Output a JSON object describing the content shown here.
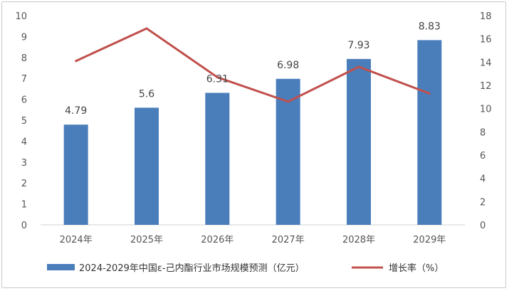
{
  "chart_data": {
    "type": "bar",
    "categories": [
      "2024年",
      "2025年",
      "2026年",
      "2027年",
      "2028年",
      "2029年"
    ],
    "series": [
      {
        "name": "2024-2029年中国ε-己内酯行业市场规模预测（亿元）",
        "type": "bar",
        "axis": "left",
        "values": [
          4.79,
          5.6,
          6.31,
          6.98,
          7.93,
          8.83
        ],
        "data_labels": [
          "4.79",
          "5.6",
          "6.31",
          "6.98",
          "7.93",
          "8.83"
        ]
      },
      {
        "name": "增长率（%）",
        "type": "line",
        "axis": "right",
        "values": [
          14.1,
          16.9,
          12.7,
          10.6,
          13.6,
          11.3
        ]
      }
    ],
    "y_left": {
      "min": 0,
      "max": 10,
      "ticks": [
        "0",
        "1",
        "2",
        "3",
        "4",
        "5",
        "6",
        "7",
        "8",
        "9",
        "10"
      ]
    },
    "y_right": {
      "min": 0,
      "max": 18,
      "ticks": [
        "0",
        "2",
        "4",
        "6",
        "8",
        "10",
        "12",
        "14",
        "16",
        "18"
      ]
    },
    "grid": false,
    "legend_position": "bottom",
    "colors": {
      "bar": "#4a7ebb",
      "line": "#c0504d"
    }
  }
}
